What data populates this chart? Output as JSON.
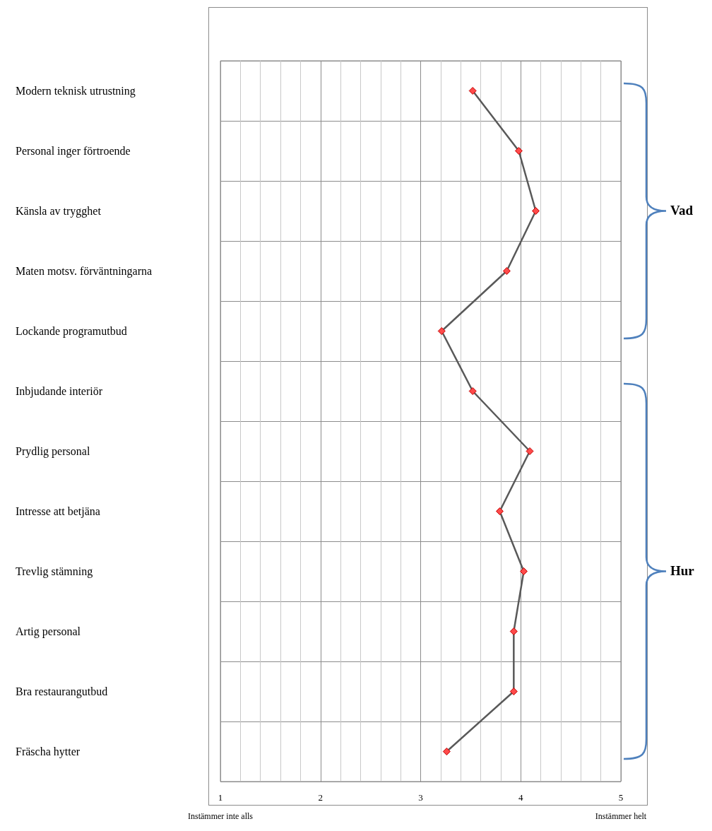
{
  "chart_data": {
    "type": "line",
    "orientation": "horizontal",
    "categories": [
      "Modern teknisk utrustning",
      "Personal inger förtroende",
      "Känsla av trygghet",
      "Maten motsv. förväntningarna",
      "Lockande programutbud",
      "Inbjudande interiör",
      "Prydlig personal",
      "Intresse att betjäna",
      "Trevlig stämning",
      "Artig personal",
      "Bra restaurangutbud",
      "Fräscha hytter"
    ],
    "values": [
      3.52,
      3.98,
      4.15,
      3.86,
      3.21,
      3.52,
      4.09,
      3.79,
      4.03,
      3.93,
      3.93,
      3.26
    ],
    "color": "#595959",
    "marker": "diamond",
    "grid": true,
    "xlim": [
      1,
      5
    ],
    "xticks": [
      1,
      2,
      3,
      4,
      5
    ],
    "annotations": [
      "Vad",
      "Hur",
      "Instämmer inte alls",
      "Instämmer helt"
    ]
  }
}
